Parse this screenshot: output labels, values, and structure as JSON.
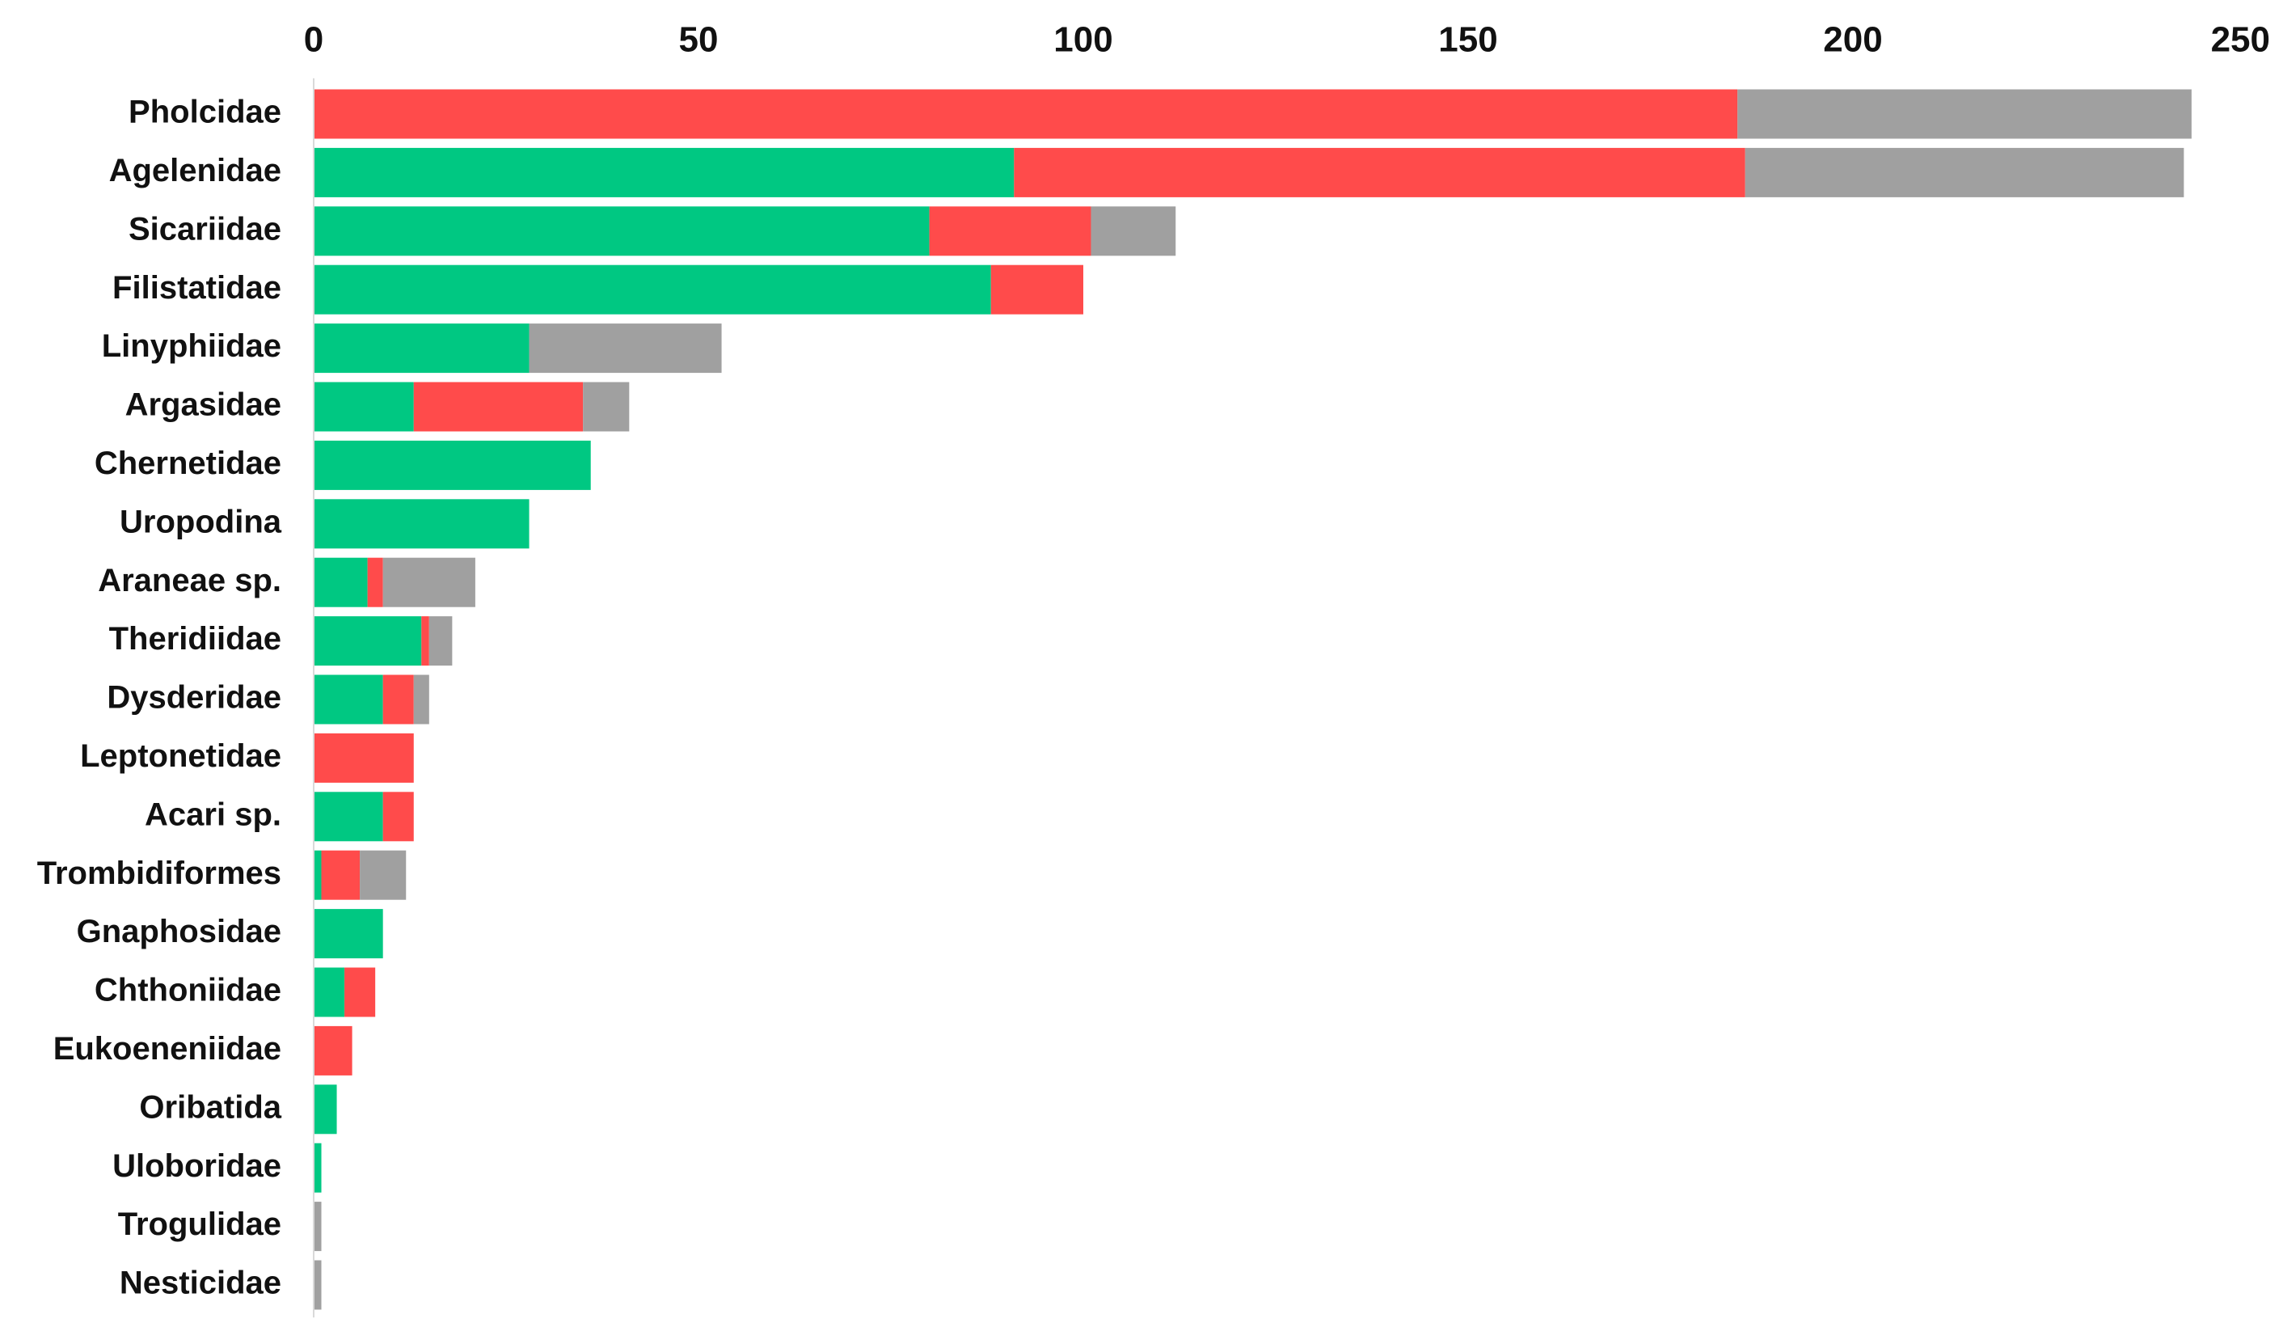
{
  "chart_data": {
    "type": "bar",
    "orientation": "horizontal",
    "stacked": true,
    "title": "",
    "xlabel": "",
    "ylabel": "",
    "xlim": [
      0,
      250
    ],
    "x_ticks": [
      0,
      50,
      100,
      150,
      200,
      250
    ],
    "x_axis_position": "top",
    "grid": false,
    "legend": "none",
    "categories": [
      "Pholcidae",
      "Agelenidae",
      "Sicariidae",
      "Filistatidae",
      "Linyphiidae",
      "Argasidae",
      "Chernetidae",
      "Uropodina",
      "Araneae sp.",
      "Theridiidae",
      "Dysderidae",
      "Leptonetidae",
      "Acari sp.",
      "Trombidiformes",
      "Gnaphosidae",
      "Chthoniidae",
      "Eukoeneniidae",
      "Oribatida",
      "Uloboridae",
      "Trogulidae",
      "Nesticidae"
    ],
    "series": [
      {
        "color": "#00C882",
        "values": [
          0,
          91,
          80,
          88,
          28,
          13,
          36,
          28,
          7,
          14,
          9,
          0,
          9,
          1,
          9,
          4,
          0,
          3,
          1,
          0,
          0
        ]
      },
      {
        "color": "#FF4B4B",
        "values": [
          185,
          95,
          21,
          12,
          0,
          22,
          0,
          0,
          2,
          1,
          4,
          13,
          4,
          5,
          0,
          4,
          5,
          0,
          0,
          0,
          0
        ]
      },
      {
        "color": "#A0A0A0",
        "values": [
          59,
          57,
          11,
          0,
          25,
          6,
          0,
          0,
          12,
          3,
          2,
          0,
          0,
          6,
          0,
          0,
          0,
          0,
          0,
          1,
          1
        ]
      }
    ]
  }
}
